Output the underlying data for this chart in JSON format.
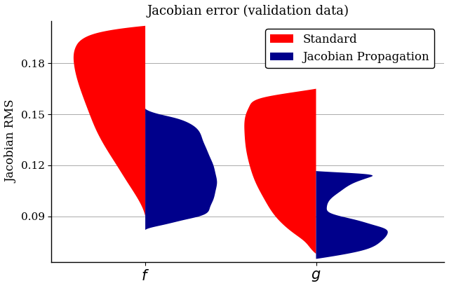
{
  "title": "Jacobian error (validation data)",
  "ylabel": "Jacobian RMS",
  "xlabel_ticks": [
    "$f$",
    "$g$"
  ],
  "xtick_positions": [
    1,
    2
  ],
  "ylim": [
    0.063,
    0.205
  ],
  "yticks": [
    0.09,
    0.12,
    0.15,
    0.18
  ],
  "color_red": "#FF0000",
  "color_blue": "#00008B",
  "legend_labels": [
    "Standard",
    "Jacobian Propagation"
  ],
  "f_red": {
    "y": [
      0.09,
      0.093,
      0.1,
      0.11,
      0.12,
      0.13,
      0.14,
      0.15,
      0.16,
      0.17,
      0.18,
      0.19,
      0.195,
      0.2,
      0.202
    ],
    "d": [
      0.0,
      0.02,
      0.1,
      0.25,
      0.4,
      0.55,
      0.68,
      0.78,
      0.87,
      0.95,
      1.0,
      0.97,
      0.85,
      0.4,
      0.0
    ]
  },
  "f_blue": {
    "y": [
      0.082,
      0.083,
      0.085,
      0.088,
      0.09,
      0.095,
      0.1,
      0.105,
      0.11,
      0.115,
      0.12,
      0.125,
      0.13,
      0.135,
      0.14,
      0.145,
      0.148,
      0.15,
      0.152,
      0.155
    ],
    "d": [
      0.0,
      0.05,
      0.25,
      0.55,
      0.75,
      0.9,
      0.95,
      0.98,
      1.0,
      0.98,
      0.95,
      0.9,
      0.85,
      0.8,
      0.75,
      0.6,
      0.4,
      0.2,
      0.05,
      0.0
    ]
  },
  "g_red": {
    "y": [
      0.068,
      0.07,
      0.075,
      0.08,
      0.09,
      0.1,
      0.11,
      0.12,
      0.13,
      0.14,
      0.15,
      0.155,
      0.16,
      0.163,
      0.165
    ],
    "d": [
      0.0,
      0.05,
      0.15,
      0.3,
      0.55,
      0.7,
      0.82,
      0.9,
      0.95,
      0.97,
      0.95,
      0.9,
      0.7,
      0.3,
      0.0
    ]
  },
  "g_blue": {
    "y": [
      0.065,
      0.067,
      0.07,
      0.075,
      0.08,
      0.083,
      0.085,
      0.088,
      0.09,
      0.092,
      0.095,
      0.1,
      0.105,
      0.11,
      0.113,
      0.115,
      0.116,
      0.118
    ],
    "d": [
      0.0,
      0.3,
      0.65,
      0.9,
      1.0,
      0.95,
      0.8,
      0.55,
      0.35,
      0.2,
      0.15,
      0.2,
      0.35,
      0.55,
      0.75,
      0.65,
      0.25,
      0.0
    ]
  },
  "xlim": [
    0.45,
    2.75
  ],
  "x_positions": [
    1.0,
    2.0
  ],
  "violin_width": 0.42
}
